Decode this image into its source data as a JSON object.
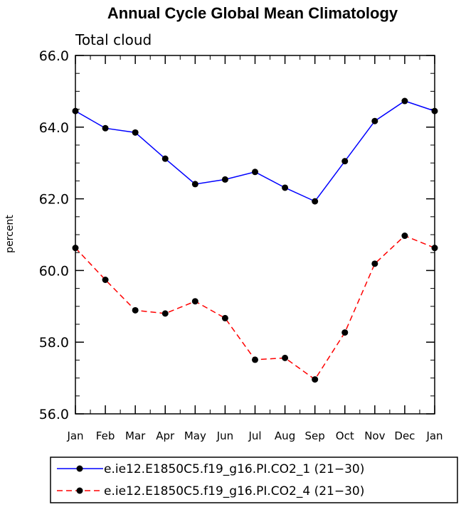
{
  "chart_data": {
    "type": "line",
    "title": "Annual Cycle Global Mean Climatology",
    "subtitle": "Total cloud",
    "ylabel": "percent",
    "xlabel": "",
    "categories": [
      "Jan",
      "Feb",
      "Mar",
      "Apr",
      "May",
      "Jun",
      "Jul",
      "Aug",
      "Sep",
      "Oct",
      "Nov",
      "Dec",
      "Jan"
    ],
    "ylim": [
      56.0,
      66.0
    ],
    "yticks": [
      "56.0",
      "58.0",
      "60.0",
      "62.0",
      "64.0",
      "66.0"
    ],
    "series": [
      {
        "name": "e.ie12.E1850C5.f19_g16.PI.CO2_1 (21−30)",
        "color": "#0000ff",
        "dash": "solid",
        "values": [
          64.45,
          63.97,
          63.85,
          63.12,
          62.41,
          62.54,
          62.75,
          62.31,
          61.93,
          63.05,
          64.17,
          64.73,
          64.45
        ]
      },
      {
        "name": "e.ie12.E1850C5.f19_g16.PI.CO2_4 (21−30)",
        "color": "#ff0000",
        "dash": "dashed",
        "values": [
          60.63,
          59.74,
          58.89,
          58.8,
          59.14,
          58.67,
          57.51,
          57.56,
          56.96,
          58.27,
          60.19,
          60.97,
          60.63
        ]
      }
    ],
    "legend": "bottom",
    "grid": false
  }
}
